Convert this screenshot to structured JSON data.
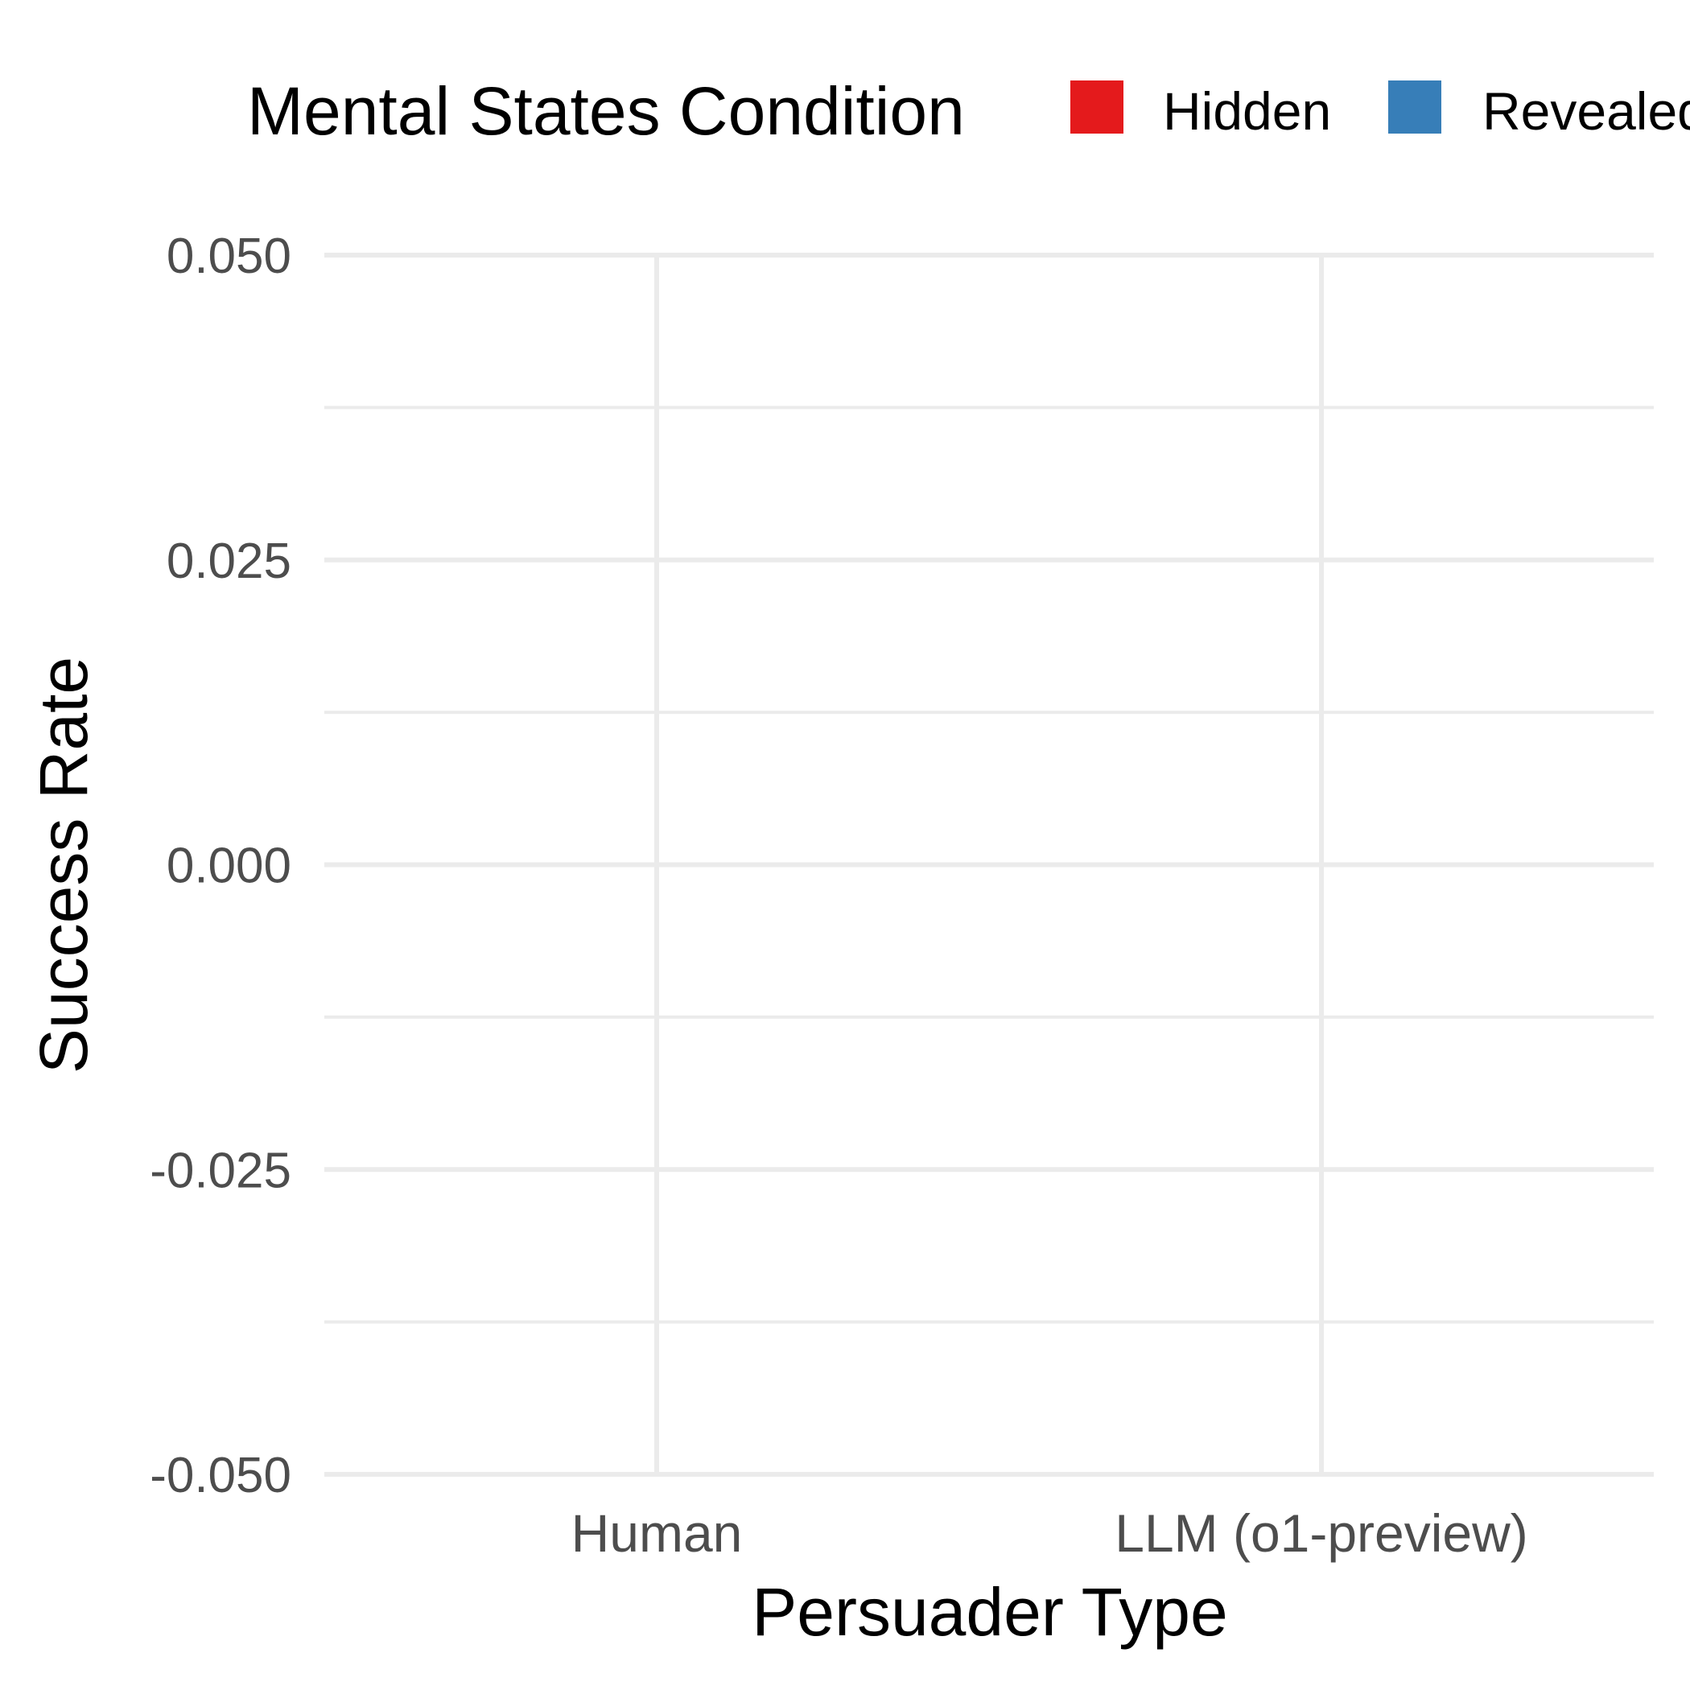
{
  "chart_data": {
    "type": "bar",
    "title": "",
    "xlabel": "Persuader Type",
    "ylabel": "Success Rate",
    "categories": [
      "Human",
      "LLM (o1-preview)"
    ],
    "series": [
      {
        "name": "Hidden",
        "color": "#e41a1c",
        "values": [
          0,
          0
        ]
      },
      {
        "name": "Revealed",
        "color": "#377eb8",
        "values": [
          0,
          0
        ]
      }
    ],
    "ylim": [
      -0.05,
      0.05
    ],
    "y_ticks": [
      -0.05,
      -0.025,
      0,
      0.025,
      0.05
    ],
    "y_tick_labels": [
      "-0.050",
      "-0.025",
      "0.000",
      "0.025",
      "0.050"
    ],
    "grid": true,
    "legend": {
      "title": "Mental States Condition",
      "placement": "top",
      "entries": [
        "Hidden",
        "Revealed"
      ]
    }
  }
}
